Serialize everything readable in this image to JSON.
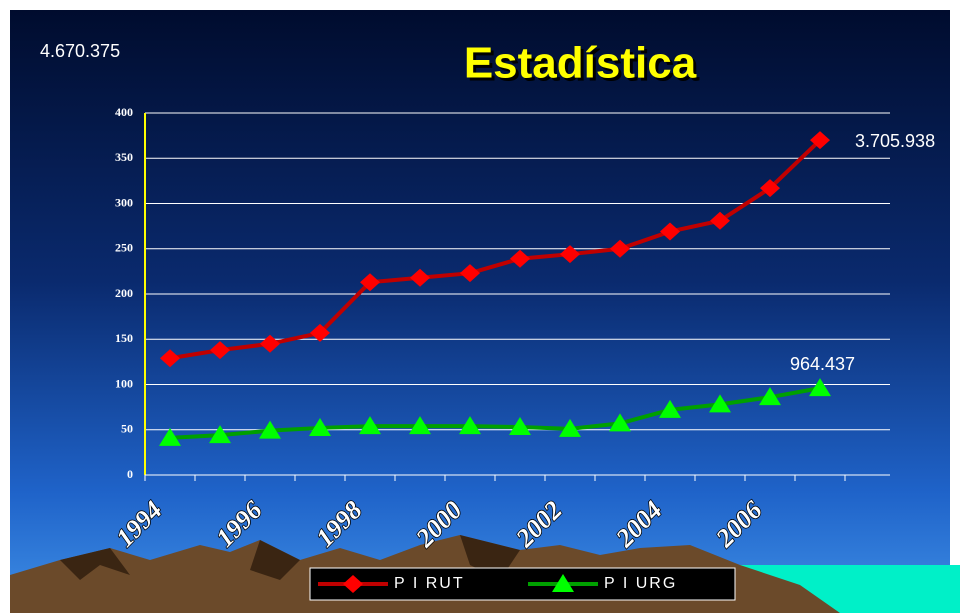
{
  "chart_data": {
    "type": "line",
    "title": "Estadística",
    "annotations": [
      "4.670.375",
      "3.705.938",
      "964.437"
    ],
    "categories": [
      "1994",
      null,
      "1996",
      null,
      "1998",
      null,
      "2000",
      null,
      "2002",
      null,
      "2004",
      null,
      "2006",
      null
    ],
    "series": [
      {
        "name": "P I RUT",
        "color": "#c00000",
        "marker_color": "#ff0000",
        "values": [
          129,
          138,
          145,
          157,
          213,
          218,
          223,
          239,
          244,
          250,
          269,
          281,
          317,
          370
        ]
      },
      {
        "name": "P I URG",
        "color": "#00a000",
        "marker_color": "#00ff00",
        "values": [
          41,
          44,
          49,
          52,
          54,
          54,
          54,
          53,
          51,
          57,
          72,
          78,
          86,
          96
        ]
      }
    ],
    "ylim": [
      0,
      400
    ],
    "yticks": [
      0,
      50,
      100,
      150,
      200,
      250,
      300,
      350,
      400
    ],
    "grid": true,
    "legend": "bottom"
  }
}
